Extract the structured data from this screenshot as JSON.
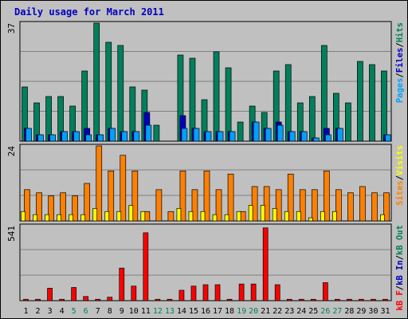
{
  "chart_data": {
    "type": "bar",
    "title": "Daily usage for March 2011",
    "categories": [
      "1",
      "2",
      "3",
      "4",
      "5",
      "6",
      "7",
      "8",
      "9",
      "10",
      "11",
      "12",
      "13",
      "14",
      "15",
      "16",
      "17",
      "18",
      "19",
      "20",
      "21",
      "22",
      "23",
      "24",
      "25",
      "26",
      "27",
      "28",
      "29",
      "30",
      "31"
    ],
    "weekend_days": [
      5,
      6,
      12,
      13,
      19,
      20,
      26,
      27
    ],
    "panels": [
      {
        "name": "hits-files-pages",
        "ymax_label": "37",
        "ylim": [
          0,
          37
        ],
        "legend": [
          {
            "key": "pages",
            "text": "Pages",
            "color": "#00a0ff"
          },
          {
            "key": "files",
            "text": "Files",
            "color": "#0000c0"
          },
          {
            "key": "hits",
            "text": "Hits",
            "color": "#00805c"
          }
        ],
        "separator": "/",
        "series": [
          {
            "name": "Hits",
            "color": "#00805c",
            "values": [
              17,
              12,
              14,
              14,
              11,
              22,
              37,
              31,
              30,
              17,
              16,
              5,
              0,
              27,
              26,
              13,
              28,
              23,
              6,
              11,
              9,
              22,
              24,
              12,
              14,
              30,
              15,
              12,
              25,
              24,
              22
            ]
          },
          {
            "name": "Files",
            "color": "#0000c0",
            "values": [
              4,
              2,
              2,
              3,
              3,
              4,
              2,
              4,
              3,
              3,
              9,
              0,
              0,
              8,
              4,
              3,
              3,
              3,
              0,
              6,
              4,
              6,
              3,
              3,
              1,
              4,
              4,
              0,
              0,
              0,
              2
            ]
          },
          {
            "name": "Pages",
            "color": "#00a0ff",
            "values": [
              4,
              2,
              2,
              3,
              3,
              2,
              2,
              4,
              3,
              3,
              5,
              0,
              0,
              4,
              4,
              3,
              3,
              3,
              0,
              6,
              4,
              5,
              3,
              3,
              1,
              2,
              4,
              0,
              0,
              0,
              2
            ]
          }
        ]
      },
      {
        "name": "sites-visits",
        "ymax_label": "24",
        "ylim": [
          0,
          24
        ],
        "legend": [
          {
            "key": "sites",
            "text": "Sites",
            "color": "#ff8000"
          },
          {
            "key": "visits",
            "text": "Visits",
            "color": "#ffff00"
          }
        ],
        "separator": "/",
        "series": [
          {
            "name": "Sites",
            "color": "#ff8000",
            "values": [
              10,
              9,
              8,
              9,
              8,
              12,
              24,
              16,
              21,
              16,
              3,
              10,
              3,
              16,
              10,
              16,
              10,
              15,
              3,
              11,
              11,
              10,
              15,
              10,
              10,
              16,
              10,
              9,
              11,
              9,
              9
            ]
          },
          {
            "name": "Visits",
            "color": "#ffff00",
            "values": [
              3,
              2,
              2,
              2,
              2,
              2,
              4,
              3,
              3,
              5,
              3,
              0,
              0,
              4,
              3,
              3,
              2,
              2,
              3,
              5,
              5,
              4,
              3,
              3,
              1,
              3,
              3,
              0,
              0,
              0,
              2
            ]
          }
        ]
      },
      {
        "name": "kbytes",
        "ymax_label": "541",
        "ylim": [
          0,
          541
        ],
        "legend": [
          {
            "key": "kbf",
            "text": "kB F",
            "color": "#ff0000"
          },
          {
            "key": "kbin",
            "text": "kB In",
            "color": "#0000c0"
          },
          {
            "key": "kbout",
            "text": "kB Out",
            "color": "#00805c"
          }
        ],
        "separator": "/",
        "series": [
          {
            "name": "kB F",
            "color": "#ff0000",
            "values": [
              10,
              10,
              90,
              10,
              95,
              30,
              10,
              25,
              235,
              105,
              490,
              10,
              10,
              75,
              105,
              115,
              115,
              10,
              120,
              120,
              525,
              115,
              10,
              10,
              10,
              130,
              10,
              10,
              10,
              10,
              10
            ]
          }
        ]
      }
    ]
  }
}
